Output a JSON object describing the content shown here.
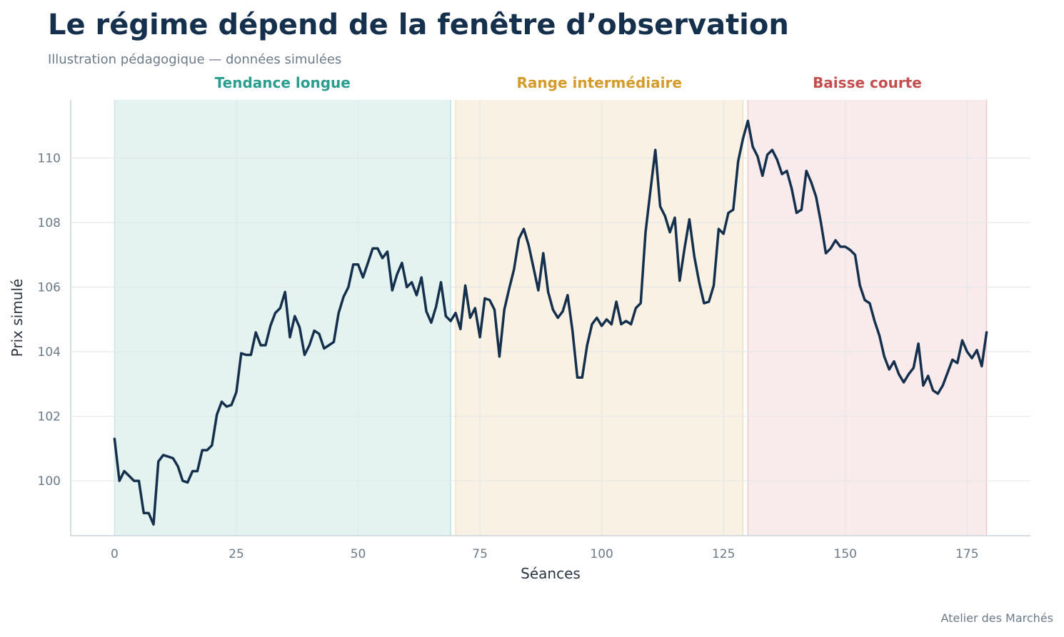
{
  "title": "Le régime dépend de la fenêtre d’observation",
  "subtitle": "Illustration pédagogique — données simulées",
  "footer": "Atelier des Marchés",
  "colors": {
    "line": "#14304d",
    "grid": "#dfe5ea",
    "axis": "#c8d3dc",
    "tick": "#6b7a89",
    "label": "#2b3440"
  },
  "chart_data": {
    "type": "line",
    "xlabel": "Séances",
    "ylabel": "Prix simulé",
    "xlim": [
      -9,
      188
    ],
    "ylim": [
      98.3,
      111.8
    ],
    "xticks": [
      0,
      25,
      50,
      75,
      100,
      125,
      150,
      175
    ],
    "yticks": [
      100,
      102,
      104,
      106,
      108,
      110
    ],
    "grid": true,
    "regimes": [
      {
        "label": "Tendance longue",
        "x_start": 0,
        "x_end": 69,
        "color": "#2a9d8f",
        "fill": "#e4f3f0"
      },
      {
        "label": "Range intermédiaire",
        "x_start": 70,
        "x_end": 129,
        "color": "#d49a2a",
        "fill": "#f9f1e3"
      },
      {
        "label": "Baisse courte",
        "x_start": 130,
        "x_end": 179,
        "color": "#c44e4e",
        "fill": "#f9ebec"
      }
    ],
    "series": [
      {
        "x_start": 0,
        "values": [
          101.3,
          100.0,
          100.3,
          100.15,
          100.0,
          100.0,
          99.0,
          99.0,
          98.65,
          100.6,
          100.8,
          100.75,
          100.7,
          100.45,
          100.0,
          99.95,
          100.3,
          100.3,
          100.95,
          100.95,
          101.1,
          102.05,
          102.45,
          102.3,
          102.35,
          102.75,
          103.95,
          103.9,
          103.9,
          104.6,
          104.2,
          104.2,
          104.8,
          105.2,
          105.35,
          105.85,
          104.45,
          105.1,
          104.75,
          103.9,
          104.2,
          104.65,
          104.55,
          104.1,
          104.2,
          104.3,
          105.2,
          105.7,
          106.0,
          106.7,
          106.7,
          106.3,
          106.75,
          107.2,
          107.2,
          106.9,
          107.1,
          105.9,
          106.4,
          106.75,
          106.0,
          106.15,
          105.75,
          106.3,
          105.25,
          104.9,
          105.4,
          106.15,
          105.1,
          104.95,
          105.2,
          104.7,
          106.05,
          105.05,
          105.35,
          104.45,
          105.65,
          105.6,
          105.3,
          103.85,
          105.3,
          105.95,
          106.55,
          107.5,
          107.8,
          107.3,
          106.6,
          105.9,
          107.05,
          105.85,
          105.3,
          105.05,
          105.25,
          105.75,
          104.65,
          103.2,
          103.2,
          104.2,
          104.85,
          105.05,
          104.8,
          105.0,
          104.85,
          105.55,
          104.85,
          104.95,
          104.85,
          105.35,
          105.5,
          107.7,
          109.0,
          110.25,
          108.5,
          108.2,
          107.7,
          108.15,
          106.2,
          107.2,
          108.1,
          106.95,
          106.15,
          105.5,
          105.55,
          106.05,
          107.8,
          107.65,
          108.3,
          108.4,
          109.9,
          110.6,
          111.15,
          110.35,
          110.05,
          109.45,
          110.1,
          110.25,
          109.95,
          109.5,
          109.6,
          109.05,
          108.3,
          108.4,
          109.6,
          109.25,
          108.8,
          108.0,
          107.05,
          107.2,
          107.45,
          107.25,
          107.25,
          107.15,
          107.0,
          106.05,
          105.6,
          105.5,
          104.95,
          104.5,
          103.85,
          103.45,
          103.7,
          103.3,
          103.05,
          103.3,
          103.5,
          104.25,
          102.95,
          103.25,
          102.8,
          102.7,
          102.95,
          103.35,
          103.75,
          103.65,
          104.35,
          104.0,
          103.8,
          104.05,
          103.55,
          104.6
        ]
      }
    ]
  }
}
